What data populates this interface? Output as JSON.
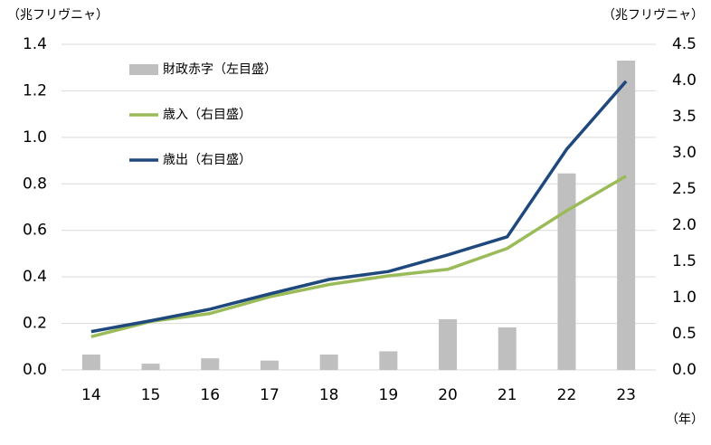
{
  "chart_data": {
    "type": "bar_line",
    "y_label": "（兆フリヴニャ）",
    "y2_label": "（兆フリヴニャ）",
    "x_label": "（年）",
    "categories": [
      "14",
      "15",
      "16",
      "17",
      "18",
      "19",
      "20",
      "21",
      "22",
      "23"
    ],
    "series": [
      {
        "name": "財政赤字（左目盛）",
        "type": "bar",
        "color": "#bfbfbf",
        "values": [
          0.066,
          0.027,
          0.05,
          0.04,
          0.066,
          0.08,
          0.218,
          0.183,
          0.845,
          1.33
        ]
      },
      {
        "name": "歳入（右目盛）",
        "type": "line",
        "axis": "y2",
        "color": "#9bbb59",
        "values": [
          0.46,
          0.67,
          0.78,
          1.01,
          1.18,
          1.3,
          1.39,
          1.68,
          2.2,
          2.68
        ]
      },
      {
        "name": "歳出（右目盛）",
        "type": "line",
        "axis": "y2",
        "color": "#1f497d",
        "values": [
          0.53,
          0.68,
          0.84,
          1.05,
          1.25,
          1.36,
          1.59,
          1.84,
          3.05,
          3.99
        ]
      }
    ],
    "ylim": [
      0,
      1.4
    ],
    "yticks": [
      {
        "value": 0,
        "label": "0.0"
      },
      0.2,
      0.4,
      0.6,
      0.8,
      {
        "value": 1,
        "label": "1.0"
      },
      1.2,
      1.4
    ],
    "y2lim": [
      0,
      4.5
    ],
    "y2ticks": [
      {
        "value": 0,
        "label": "0.0"
      },
      0.5,
      {
        "value": 1,
        "label": "1.0"
      },
      1.5,
      {
        "value": 2,
        "label": "2.0"
      },
      2.5,
      {
        "value": 3,
        "label": "3.0"
      },
      3.5,
      {
        "value": 4,
        "label": "4.0"
      },
      4.5
    ],
    "grid": true
  }
}
